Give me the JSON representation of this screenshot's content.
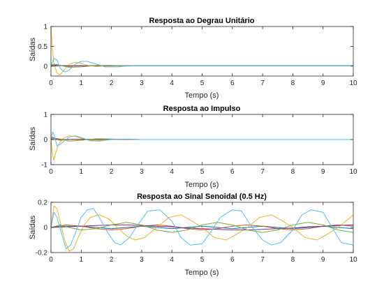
{
  "chart_data": [
    {
      "type": "line",
      "title": "Resposta ao Degrau Unitário",
      "xlabel": "Tempo (s)",
      "ylabel": "Saídas",
      "xlim": [
        0,
        10
      ],
      "ylim": [
        -0.25,
        1
      ],
      "xticks": [
        "0",
        "1",
        "2",
        "3",
        "4",
        "5",
        "6",
        "7",
        "8",
        "9",
        "10"
      ],
      "yticks": [
        "0",
        "0.5",
        "1"
      ],
      "ytick_values": [
        0,
        0.5,
        1
      ],
      "grid": false,
      "series": [
        {
          "color": "#0072BD",
          "x": [
            0,
            0.1,
            0.2,
            0.3,
            0.5,
            0.7,
            1.0,
            1.5,
            2,
            3,
            10
          ],
          "y": [
            0,
            0.02,
            0.03,
            0.02,
            0.01,
            0.01,
            0.01,
            0.01,
            0.01,
            0.01,
            0.01
          ]
        },
        {
          "color": "#D95319",
          "x": [
            0,
            0.05,
            0.1,
            0.2,
            0.3,
            0.5,
            0.8,
            1.2,
            2,
            10
          ],
          "y": [
            0,
            0.03,
            0.05,
            0.04,
            0.02,
            -0.01,
            0,
            0.01,
            0.01,
            0.01
          ]
        },
        {
          "color": "#EDB120",
          "x": [
            0,
            0.05,
            0.1,
            0.2,
            0.3,
            0.45,
            0.6,
            0.8,
            1.0,
            1.2,
            1.5,
            1.8,
            2.2,
            3,
            10
          ],
          "y": [
            1.0,
            0.4,
            0.05,
            -0.18,
            -0.22,
            -0.08,
            0.05,
            0.1,
            0.07,
            0.02,
            -0.01,
            0.0,
            0.01,
            0.01,
            0.01
          ]
        },
        {
          "color": "#7E2F8E",
          "x": [
            0,
            0.3,
            1,
            2,
            3,
            10
          ],
          "y": [
            0,
            0.01,
            0.01,
            0.01,
            0.01,
            0.01
          ]
        },
        {
          "color": "#77AC30",
          "x": [
            0,
            0.1,
            0.3,
            0.6,
            1.0,
            1.5,
            2.0,
            2.5,
            3,
            10
          ],
          "y": [
            0.03,
            0.05,
            0.02,
            -0.03,
            -0.02,
            0.02,
            0.02,
            0.0,
            0.01,
            0.01
          ]
        },
        {
          "color": "#4DBEEE",
          "x": [
            0,
            0.1,
            0.2,
            0.3,
            0.45,
            0.6,
            0.8,
            1.0,
            1.2,
            1.5,
            1.8,
            2.2,
            2.6,
            3,
            10
          ],
          "y": [
            0.0,
            0.2,
            0.15,
            -0.05,
            -0.15,
            -0.1,
            0.05,
            0.12,
            0.12,
            0.05,
            -0.02,
            -0.02,
            0.01,
            0.01,
            0.01
          ]
        }
      ]
    },
    {
      "type": "line",
      "title": "Resposta ao Impulso",
      "xlabel": "Tempo (s)",
      "ylabel": "Saídas",
      "xlim": [
        0,
        10
      ],
      "ylim": [
        -1,
        1
      ],
      "xticks": [
        "0",
        "1",
        "2",
        "3",
        "4",
        "5",
        "6",
        "7",
        "8",
        "9",
        "10"
      ],
      "yticks": [
        "-1",
        "0",
        "1"
      ],
      "ytick_values": [
        -1,
        0,
        1
      ],
      "grid": false,
      "series": [
        {
          "color": "#0072BD",
          "x": [
            0,
            0.1,
            0.2,
            0.4,
            0.7,
            1,
            10
          ],
          "y": [
            0,
            0.06,
            0.04,
            0.0,
            0.0,
            0.0,
            0.0
          ]
        },
        {
          "color": "#D95319",
          "x": [
            0,
            0.05,
            0.15,
            0.3,
            0.6,
            1,
            10
          ],
          "y": [
            0,
            0.1,
            0.03,
            -0.03,
            0.0,
            0.0,
            0.0
          ]
        },
        {
          "color": "#EDB120",
          "x": [
            0,
            0.05,
            0.1,
            0.15,
            0.25,
            0.4,
            0.6,
            0.8,
            1.0,
            1.2,
            1.5,
            1.8,
            2.2,
            3,
            10
          ],
          "y": [
            0.0,
            -0.6,
            -0.82,
            -0.55,
            -0.2,
            0.05,
            0.15,
            0.12,
            0.05,
            -0.02,
            -0.04,
            -0.01,
            0.01,
            0.0,
            0.0
          ]
        },
        {
          "color": "#7E2F8E",
          "x": [
            0,
            1,
            3,
            10
          ],
          "y": [
            0,
            0.01,
            0.0,
            0.0
          ]
        },
        {
          "color": "#77AC30",
          "x": [
            0,
            0.1,
            0.3,
            0.6,
            1.0,
            1.5,
            2.0,
            3,
            10
          ],
          "y": [
            0.0,
            0.05,
            0.02,
            -0.06,
            -0.03,
            0.03,
            0.02,
            0.0,
            0.0
          ]
        },
        {
          "color": "#4DBEEE",
          "x": [
            0,
            0.05,
            0.1,
            0.2,
            0.3,
            0.45,
            0.6,
            0.8,
            1.0,
            1.3,
            1.6,
            2.0,
            2.5,
            3,
            10
          ],
          "y": [
            0.0,
            0.3,
            0.2,
            -0.25,
            -0.2,
            -0.05,
            0.1,
            0.15,
            0.08,
            -0.05,
            -0.06,
            0.0,
            0.02,
            0.0,
            0.0
          ]
        }
      ]
    },
    {
      "type": "line",
      "title": "Resposta ao Sinal Senoidal (0.5 Hz)",
      "xlabel": "Tempo (s)",
      "ylabel": "Saídas",
      "xlim": [
        0,
        10
      ],
      "ylim": [
        -0.2,
        0.2
      ],
      "xticks": [
        "0",
        "1",
        "2",
        "3",
        "4",
        "5",
        "6",
        "7",
        "8",
        "9",
        "10"
      ],
      "yticks": [
        "-0.2",
        "0",
        "0.2"
      ],
      "ytick_values": [
        -0.2,
        0,
        0.2
      ],
      "grid": false,
      "series": [
        {
          "color": "#0072BD",
          "x": [
            0,
            0.5,
            1,
            1.5,
            2,
            2.5,
            3,
            3.5,
            4,
            4.5,
            5,
            5.5,
            6,
            6.5,
            7,
            7.5,
            8,
            8.5,
            9,
            9.5,
            10
          ],
          "y": [
            0,
            0.01,
            0.01,
            0,
            -0.01,
            0,
            0.01,
            0,
            -0.01,
            0,
            0.01,
            0,
            -0.01,
            0,
            0.01,
            0,
            -0.01,
            0,
            0.01,
            0,
            -0.01
          ]
        },
        {
          "color": "#D95319",
          "x": [
            0,
            0.5,
            1,
            1.5,
            2,
            2.5,
            3,
            3.5,
            4,
            4.5,
            5,
            5.5,
            6,
            6.5,
            7,
            7.5,
            8,
            8.5,
            9,
            9.5,
            10
          ],
          "y": [
            0,
            0.02,
            0.01,
            -0.01,
            -0.02,
            -0.01,
            0.01,
            0.02,
            0.01,
            -0.01,
            -0.02,
            -0.01,
            0.01,
            0.02,
            0.01,
            -0.01,
            -0.02,
            -0.01,
            0.01,
            0.02,
            0.01
          ]
        },
        {
          "color": "#EDB120",
          "x": [
            0,
            0.1,
            0.2,
            0.3,
            0.45,
            0.6,
            0.75,
            0.9,
            1.1,
            1.3,
            1.6,
            1.9,
            2.2,
            2.5,
            2.8,
            3.1,
            3.5,
            3.9,
            4.3,
            4.6,
            5.0,
            5.4,
            5.8,
            6.1,
            6.5,
            6.9,
            7.3,
            7.6,
            8.0,
            8.4,
            8.8,
            9.1,
            9.5,
            9.9,
            10
          ],
          "y": [
            0,
            0.17,
            0.15,
            0.05,
            -0.1,
            -0.19,
            -0.17,
            -0.08,
            0.02,
            0.08,
            0.1,
            0.07,
            0.0,
            -0.07,
            -0.1,
            -0.08,
            0.0,
            0.08,
            0.1,
            0.06,
            0.0,
            -0.08,
            -0.1,
            -0.06,
            0.0,
            0.08,
            0.1,
            0.06,
            0.0,
            -0.08,
            -0.1,
            -0.06,
            0.0,
            0.08,
            0.1
          ]
        },
        {
          "color": "#7E2F8E",
          "x": [
            0,
            0.5,
            1,
            1.5,
            2,
            2.5,
            3,
            3.5,
            4,
            4.5,
            5,
            5.5,
            6,
            6.5,
            7,
            7.5,
            8,
            8.5,
            9,
            9.5,
            10
          ],
          "y": [
            0,
            0.005,
            0.01,
            0.015,
            0.02,
            0.02,
            0.015,
            0.01,
            0.005,
            -0.005,
            -0.01,
            -0.015,
            -0.02,
            -0.02,
            -0.015,
            -0.01,
            -0.005,
            0.005,
            0.01,
            0.015,
            0.02
          ]
        },
        {
          "color": "#77AC30",
          "x": [
            0,
            0.3,
            0.6,
            1,
            1.5,
            2,
            2.5,
            3,
            3.5,
            4,
            4.5,
            5,
            5.5,
            6,
            6.5,
            7,
            7.5,
            8,
            8.5,
            9,
            9.5,
            10
          ],
          "y": [
            0,
            0.02,
            0.0,
            -0.02,
            -0.01,
            0.02,
            0.04,
            0.02,
            -0.02,
            -0.04,
            -0.02,
            0.02,
            0.04,
            0.02,
            -0.02,
            -0.04,
            -0.02,
            0.02,
            0.04,
            0.02,
            -0.02,
            -0.04
          ]
        },
        {
          "color": "#4DBEEE",
          "x": [
            0,
            0.1,
            0.2,
            0.35,
            0.5,
            0.65,
            0.8,
            1.0,
            1.2,
            1.4,
            1.6,
            1.85,
            2.1,
            2.3,
            2.6,
            2.9,
            3.2,
            3.6,
            4.0,
            4.3,
            4.6,
            5.0,
            5.3,
            5.6,
            6.0,
            6.3,
            6.6,
            7.0,
            7.3,
            7.6,
            8.0,
            8.3,
            8.6,
            9.0,
            9.3,
            9.6,
            10
          ],
          "y": [
            0,
            0.12,
            0.08,
            -0.05,
            -0.17,
            -0.14,
            -0.05,
            0.08,
            0.14,
            0.15,
            0.08,
            -0.03,
            -0.12,
            -0.14,
            -0.08,
            0.03,
            0.13,
            0.14,
            0.05,
            -0.08,
            -0.14,
            -0.13,
            -0.03,
            0.08,
            0.14,
            0.13,
            0.02,
            -0.1,
            -0.14,
            -0.12,
            -0.02,
            0.1,
            0.14,
            0.12,
            0.0,
            -0.12,
            -0.14
          ]
        }
      ]
    }
  ]
}
